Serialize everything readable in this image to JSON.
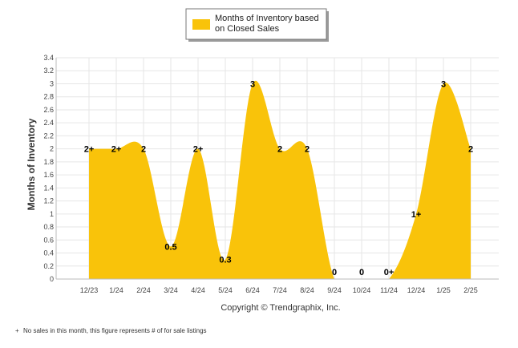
{
  "chart_data": {
    "type": "area",
    "categories": [
      "12/23",
      "1/24",
      "2/24",
      "3/24",
      "4/24",
      "5/24",
      "6/24",
      "7/24",
      "8/24",
      "9/24",
      "10/24",
      "11/24",
      "12/24",
      "1/25",
      "2/25"
    ],
    "series": [
      {
        "name": "Months of Inventory based on Closed Sales",
        "values": [
          2,
          2,
          2,
          0.5,
          2,
          0.3,
          3,
          2,
          2,
          0,
          0,
          0,
          1,
          3,
          2
        ],
        "labels": [
          "2+",
          "2+",
          "2",
          "0.5",
          "2+",
          "0.3",
          "3",
          "2",
          "2",
          "0",
          "0",
          "0+",
          "1+",
          "3",
          "2"
        ]
      }
    ],
    "ylabel": "Months of Inventory",
    "ylim": [
      0,
      3.4
    ],
    "yticks": [
      "0",
      "0.2",
      "0.4",
      "0.6",
      "0.8",
      "1",
      "1.2",
      "1.4",
      "1.6",
      "1.8",
      "2",
      "2.2",
      "2.4",
      "2.6",
      "2.8",
      "3",
      "3.2",
      "3.4"
    ],
    "grid": true,
    "legend_position": "top-center",
    "fill_color": "#F9C30A"
  },
  "legend": {
    "line1": "Months of Inventory based",
    "line2": "on Closed Sales"
  },
  "copyright": "Copyright © Trendgraphix, Inc.",
  "footnote": {
    "mark": "+",
    "text": "No sales in this month, this figure represents # of for sale listings"
  }
}
